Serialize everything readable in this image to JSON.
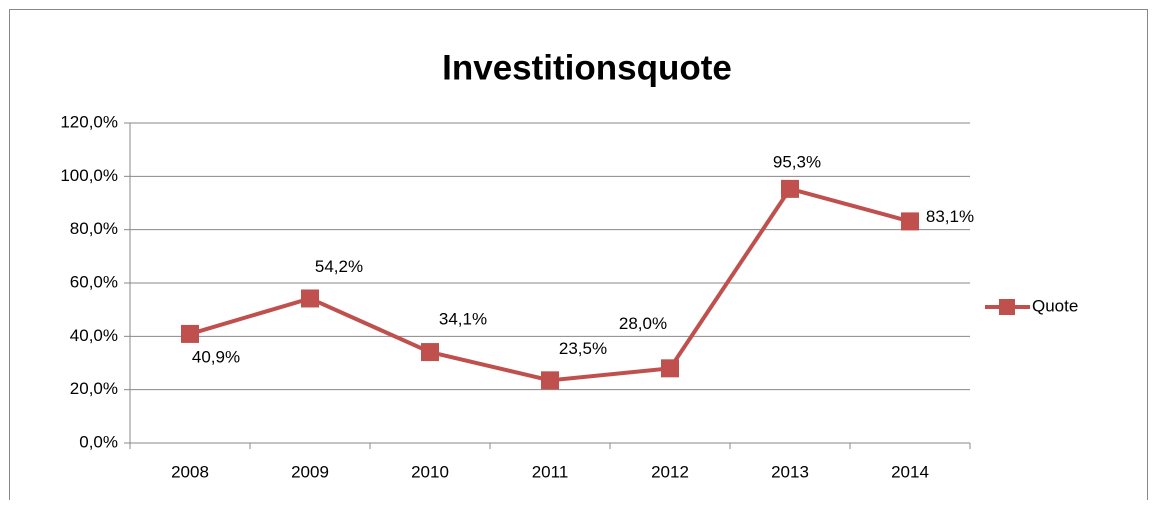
{
  "chart_data": {
    "type": "line",
    "title": "Investitionsquote",
    "categories": [
      "2008",
      "2009",
      "2010",
      "2011",
      "2012",
      "2013",
      "2014"
    ],
    "series": [
      {
        "name": "Quote",
        "color": "#c0504d",
        "values": [
          40.9,
          54.2,
          34.1,
          23.5,
          28.0,
          95.3,
          83.1
        ],
        "value_labels": [
          "40,9%",
          "54,2%",
          "34,1%",
          "23,5%",
          "28,0%",
          "95,3%",
          "83,1%"
        ]
      }
    ],
    "ylim": [
      0,
      120
    ],
    "yticks": [
      {
        "value": 0,
        "label": "0,0%"
      },
      {
        "value": 20,
        "label": "20,0%"
      },
      {
        "value": 40,
        "label": "40,0%"
      },
      {
        "value": 60,
        "label": "60,0%"
      },
      {
        "value": 80,
        "label": "80,0%"
      },
      {
        "value": 100,
        "label": "100,0%"
      },
      {
        "value": 120,
        "label": "120,0%"
      }
    ],
    "grid": true,
    "legend": "right"
  }
}
